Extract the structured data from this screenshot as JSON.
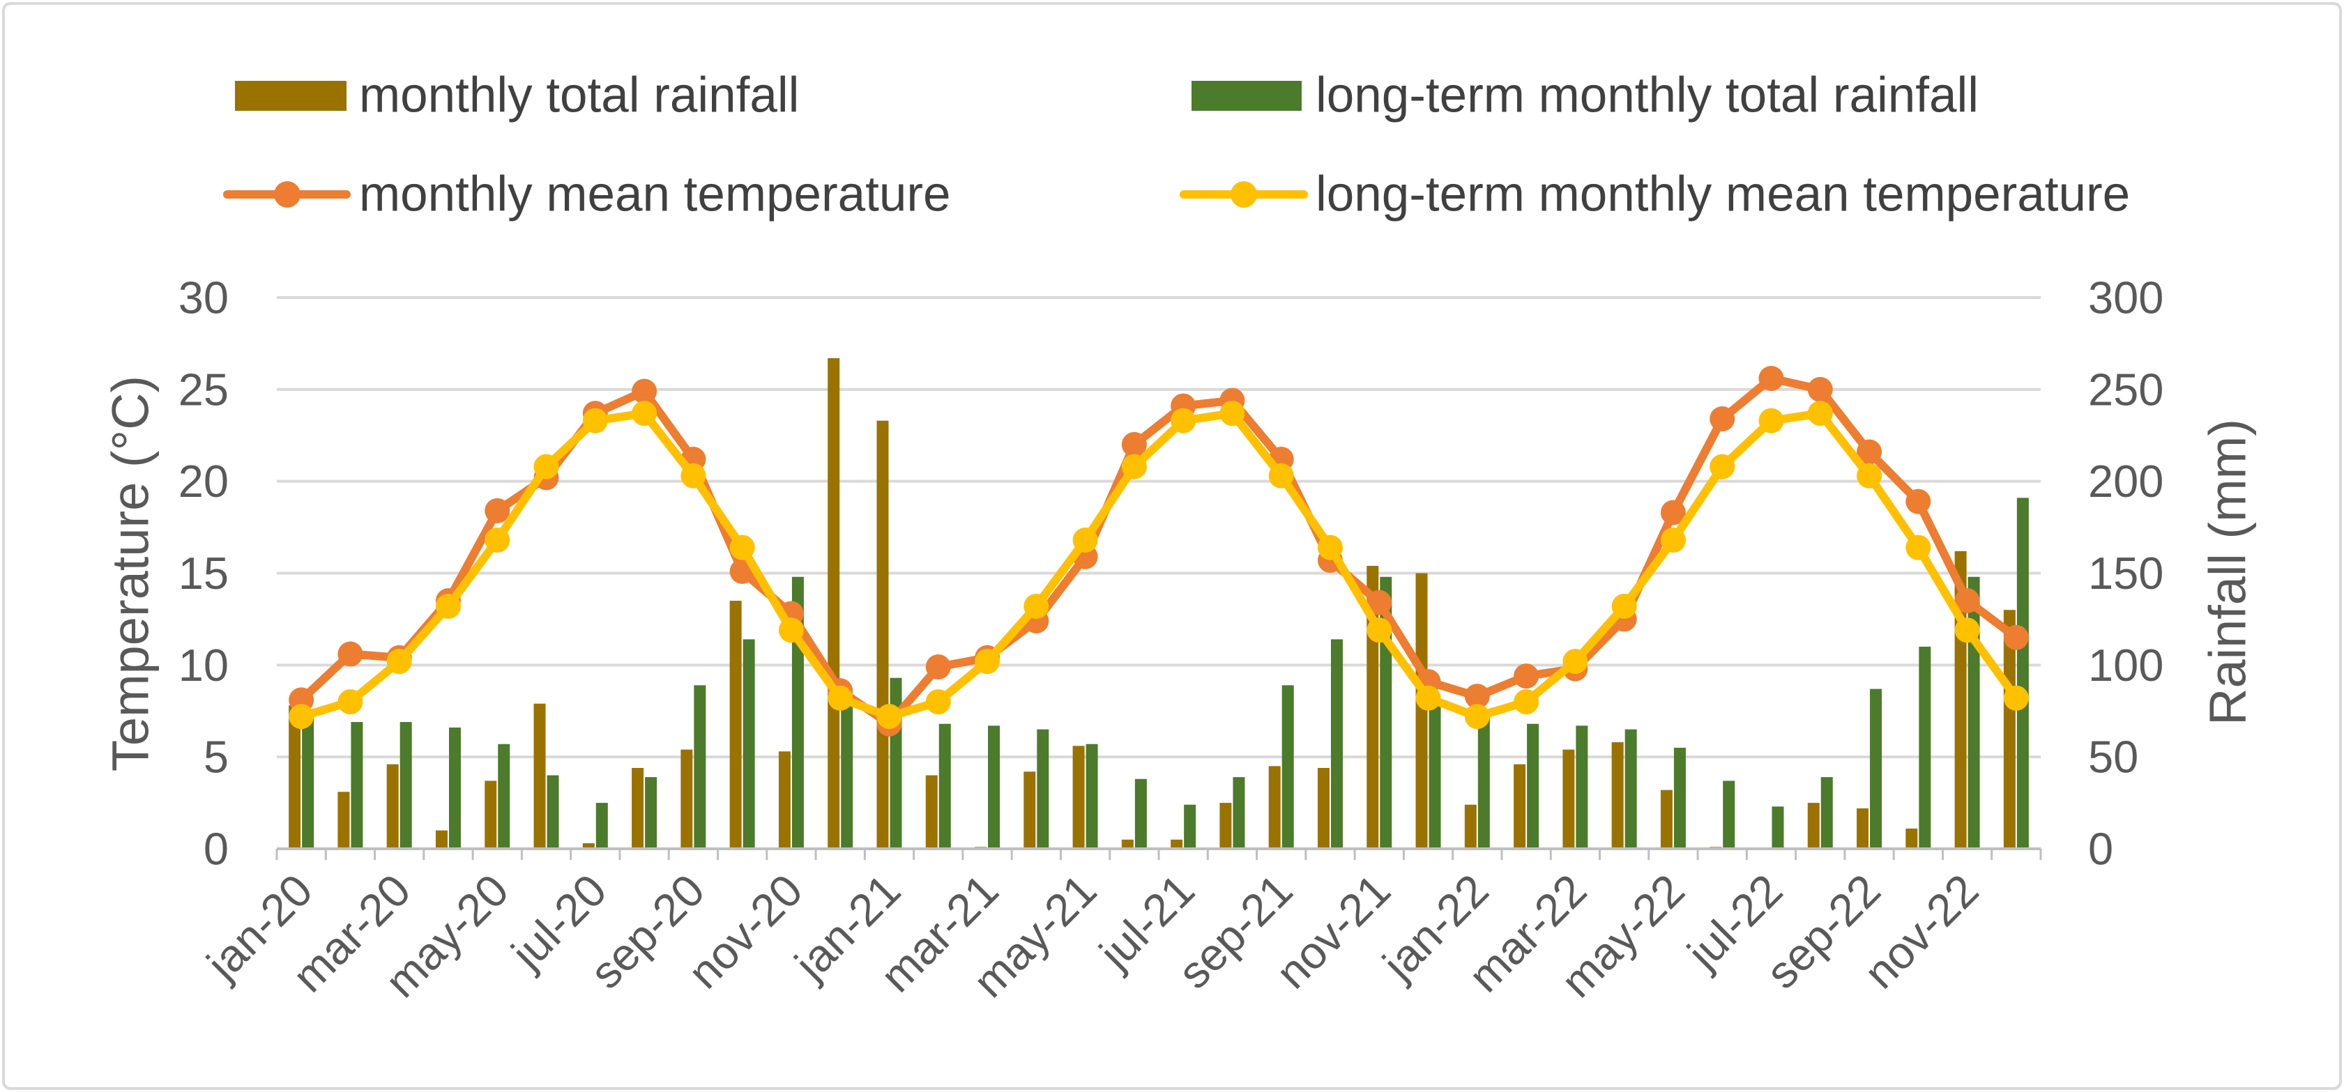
{
  "chart_data": {
    "type": "bar",
    "title": "",
    "xlabel": "",
    "ylabel": "Temperature (°C)",
    "y2label": "Rainfall (mm)",
    "x_tick_labels": [
      "jan-20",
      "mar-20",
      "may-20",
      "jul-20",
      "sep-20",
      "nov-20",
      "jan-21",
      "mar-21",
      "may-21",
      "jul-21",
      "sep-21",
      "nov-21",
      "jan-22",
      "mar-22",
      "may-22",
      "jul-22",
      "sep-22",
      "nov-22"
    ],
    "x_tick_label_step": 2,
    "y_left": {
      "min": 0,
      "max": 30,
      "ticks": [
        0,
        5,
        10,
        15,
        20,
        25,
        30
      ]
    },
    "y_right": {
      "min": 0,
      "max": 300,
      "ticks": [
        0,
        50,
        100,
        150,
        200,
        250,
        300
      ]
    },
    "grid": true,
    "legend_position": "top",
    "series": [
      {
        "name": "monthly total rainfall",
        "type": "bar",
        "color": "#9A7200",
        "values": [
          78,
          31,
          46,
          10,
          37,
          79,
          3,
          44,
          54,
          135,
          53,
          267,
          233,
          40,
          1,
          42,
          56,
          5,
          5,
          25,
          45,
          44,
          154,
          150,
          24,
          46,
          54,
          58,
          32,
          1,
          0,
          25,
          22,
          11,
          162,
          130
        ]
      },
      {
        "name": "long-term monthly total rainfall",
        "type": "bar",
        "color": "#4B7B2B",
        "values": [
          75,
          69,
          69,
          66,
          57,
          40,
          25,
          39,
          89,
          114,
          148,
          80,
          93,
          68,
          67,
          65,
          57,
          38,
          24,
          39,
          89,
          114,
          148,
          80,
          75,
          68,
          67,
          65,
          55,
          37,
          23,
          39,
          87,
          110,
          148,
          191
        ]
      },
      {
        "name": "monthly mean temperature",
        "type": "line",
        "color": "#ED7D31",
        "values": [
          8.1,
          10.6,
          10.4,
          13.5,
          18.4,
          20.2,
          23.7,
          24.9,
          21.2,
          15.1,
          12.8,
          8.6,
          6.8,
          9.9,
          10.4,
          12.4,
          15.9,
          22.0,
          24.1,
          24.4,
          21.2,
          15.7,
          13.4,
          9.1,
          8.3,
          9.4,
          9.8,
          12.5,
          18.3,
          23.4,
          25.6,
          25.0,
          21.6,
          18.9,
          13.5,
          11.5
        ]
      },
      {
        "name": "long-term monthly mean temperature",
        "type": "line",
        "color": "#FFC000",
        "values": [
          7.2,
          8.0,
          10.2,
          13.2,
          16.8,
          20.8,
          23.3,
          23.7,
          20.3,
          16.4,
          11.9,
          8.2,
          7.2,
          8.0,
          10.2,
          13.2,
          16.8,
          20.8,
          23.3,
          23.7,
          20.3,
          16.4,
          11.9,
          8.2,
          7.2,
          8.0,
          10.2,
          13.2,
          16.8,
          20.8,
          23.3,
          23.7,
          20.3,
          16.4,
          11.9,
          8.2
        ]
      }
    ]
  }
}
